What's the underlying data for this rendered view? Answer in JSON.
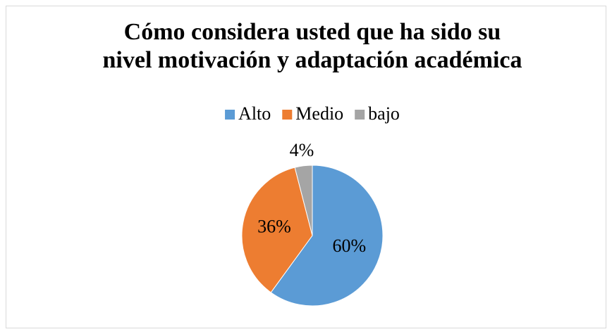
{
  "chart_data": {
    "type": "pie",
    "title": [
      "Cómo considera usted que ha sido su",
      "nivel motivación y adaptación académica"
    ],
    "categories": [
      "Alto",
      "Medio",
      "bajo"
    ],
    "values": [
      60,
      36,
      4
    ],
    "value_labels": [
      "60%",
      "36%",
      "4%"
    ],
    "colors": [
      "#5b9bd5",
      "#ed7d31",
      "#a5a5a5"
    ],
    "legend": "top"
  }
}
